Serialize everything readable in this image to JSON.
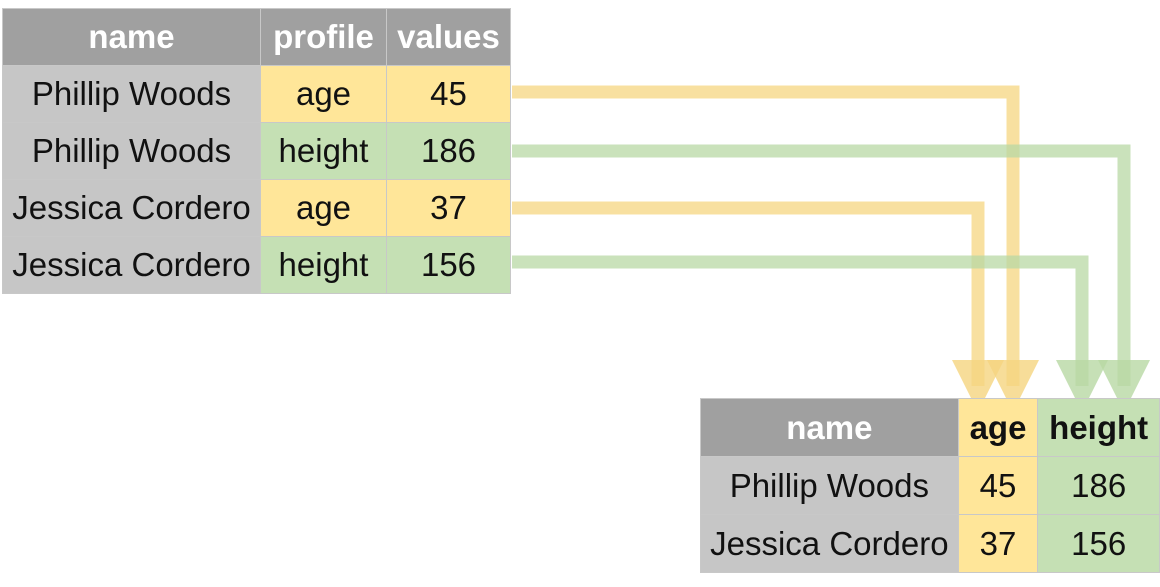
{
  "long_table": {
    "headers": [
      "name",
      "profile",
      "values"
    ],
    "rows": [
      {
        "name": "Phillip Woods",
        "profile": "age",
        "value": "45"
      },
      {
        "name": "Phillip Woods",
        "profile": "height",
        "value": "186"
      },
      {
        "name": "Jessica Cordero",
        "profile": "age",
        "value": "37"
      },
      {
        "name": "Jessica Cordero",
        "profile": "height",
        "value": "156"
      }
    ]
  },
  "wide_table": {
    "headers": [
      "name",
      "age",
      "height"
    ],
    "rows": [
      {
        "name": "Phillip Woods",
        "age": "45",
        "height": "186"
      },
      {
        "name": "Jessica Cordero",
        "age": "37",
        "height": "156"
      }
    ]
  },
  "colors": {
    "age": "#ffe699",
    "height": "#c5e0b4",
    "age_arrow": "#f5d580",
    "height_arrow": "#b8d8a4",
    "header": "#a0a0a0",
    "name_cell": "#c6c6c6"
  }
}
